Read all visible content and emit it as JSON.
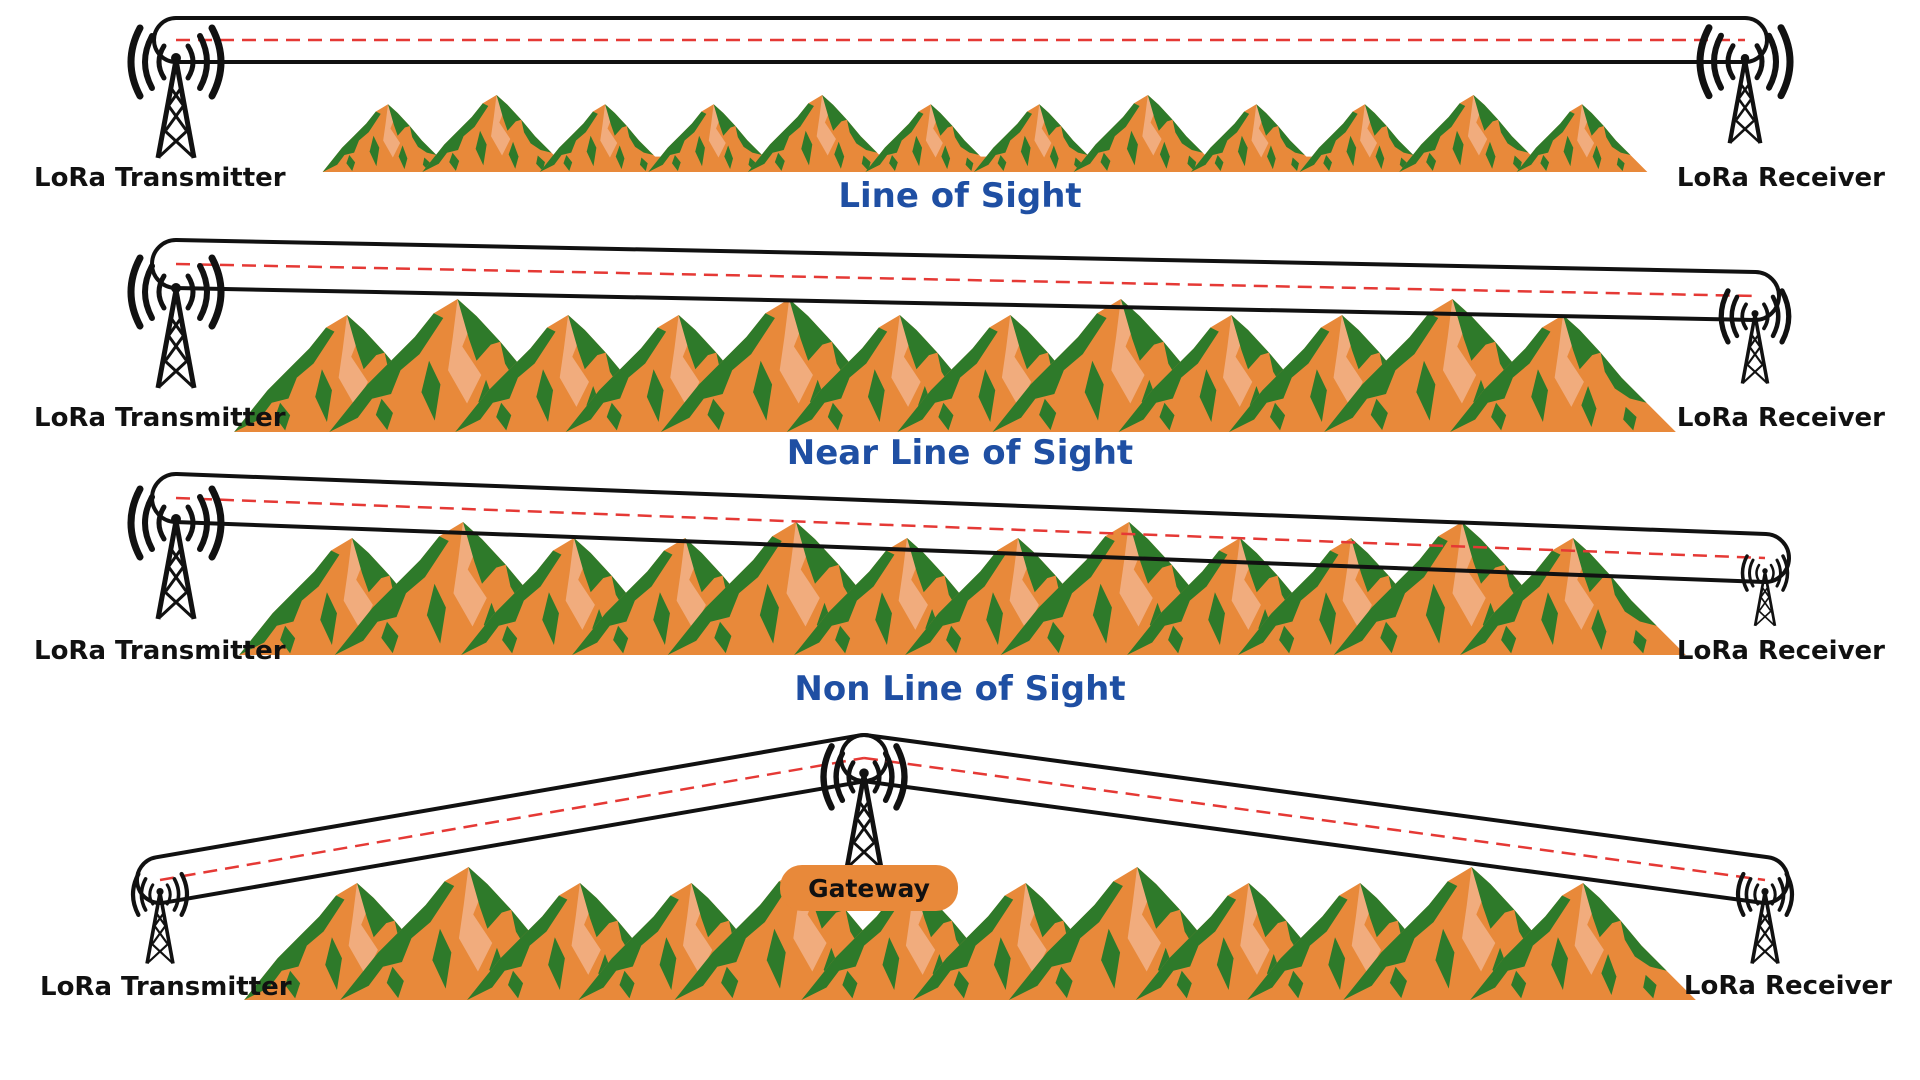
{
  "colors": {
    "title": "#1F4FA3",
    "mountain": "#E8893A",
    "mountain_highlight": "#F2B38A",
    "vegetation": "#2E7A2A",
    "tube": "#111111",
    "beam": "#E53935",
    "gateway_badge": "#E8893A"
  },
  "icons": {
    "tower": "radio-tower-icon",
    "waves": "signal-waves-icon",
    "terrain": "mountain-range"
  },
  "scenarios": [
    {
      "title": "Line of Sight",
      "transmitter": "LoRa Transmitter",
      "receiver": "LoRa Receiver",
      "link": "clear"
    },
    {
      "title": "Near Line of Sight",
      "transmitter": "LoRa Transmitter",
      "receiver": "LoRa Receiver",
      "link": "partially obstructed"
    },
    {
      "title": "Non Line of Sight",
      "transmitter": "LoRa Transmitter",
      "receiver": "LoRa Receiver",
      "link": "obstructed"
    },
    {
      "title": "",
      "transmitter": "LoRa Transmitter",
      "receiver": "LoRa Receiver",
      "gateway": "Gateway",
      "link": "relayed via gateway"
    }
  ]
}
